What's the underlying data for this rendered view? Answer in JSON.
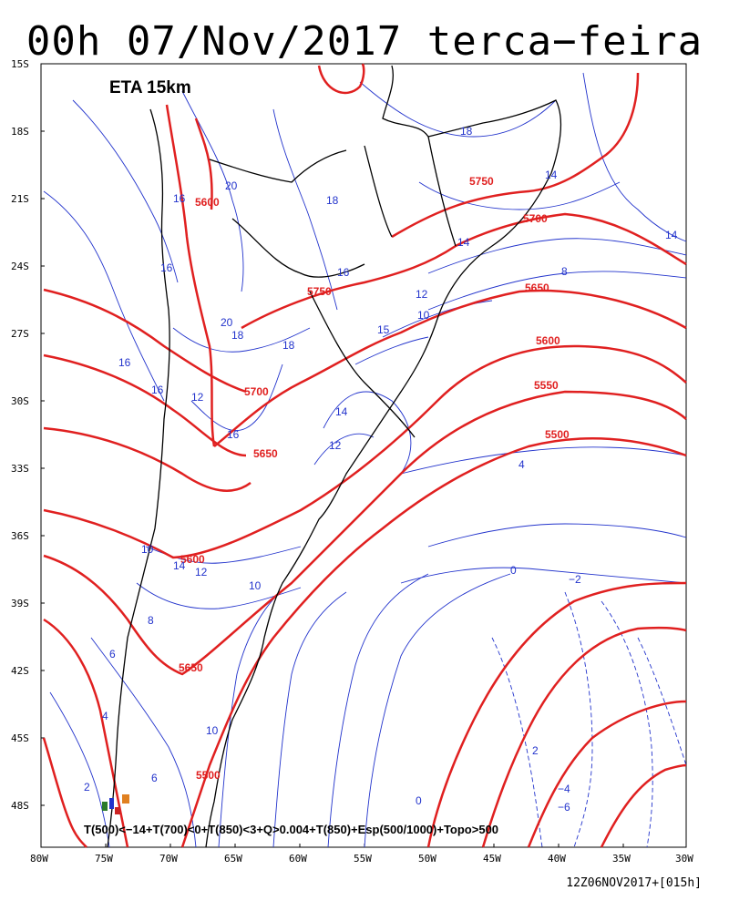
{
  "title": "00h 07/Nov/2017 terca−feira",
  "model_label": "ETA 15km",
  "legend_text": "T(500)<−14+T(700)<0+T(850)<3+Q>0.004+T(850)+Esp(500/1000)+Topo>500",
  "footer": "12Z06NOV2017+[015h]",
  "colors": {
    "thickness": "#e02020",
    "temperature": "#2233cc",
    "coast": "#000000"
  },
  "lat_labels": [
    "15S",
    "18S",
    "21S",
    "24S",
    "27S",
    "30S",
    "33S",
    "36S",
    "39S",
    "42S",
    "45S",
    "48S"
  ],
  "lon_labels": [
    "80W",
    "75W",
    "70W",
    "65W",
    "60W",
    "55W",
    "50W",
    "45W",
    "40W",
    "35W",
    "30W"
  ],
  "thickness_labels": [
    "5600",
    "5750",
    "5700",
    "5650",
    "5750",
    "5600",
    "5700",
    "5550",
    "5500",
    "5650",
    "5600",
    "5650",
    "5500"
  ],
  "temperature_labels": [
    "18",
    "14",
    "14",
    "20",
    "16",
    "18",
    "14",
    "8",
    "12",
    "16",
    "10",
    "16",
    "20",
    "18",
    "18",
    "15",
    "16",
    "16",
    "12",
    "14",
    "16",
    "12",
    "4",
    "0",
    "−2",
    "10",
    "14",
    "12",
    "10",
    "8",
    "6",
    "4",
    "10",
    "2",
    "6",
    "2",
    "0",
    "−4",
    "−6"
  ]
}
